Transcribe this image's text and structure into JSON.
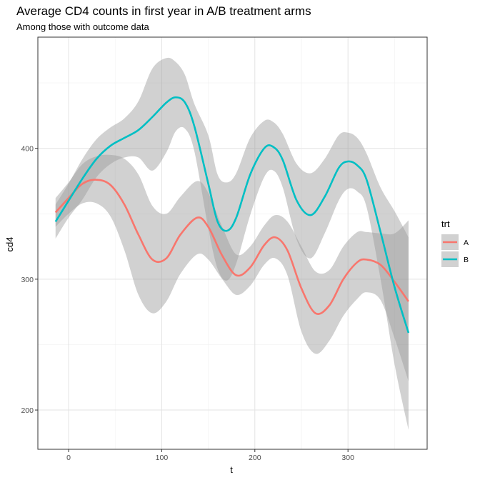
{
  "chart_data": {
    "type": "line",
    "title": "Average CD4 counts in first year in A/B treatment arms",
    "subtitle": "Among those with outcome data",
    "xlabel": "t",
    "ylabel": "cd4",
    "xlim": [
      -33,
      385
    ],
    "ylim": [
      170,
      485
    ],
    "x_ticks": [
      0,
      100,
      200,
      300
    ],
    "y_ticks": [
      200,
      300,
      400
    ],
    "grid": true,
    "legend": {
      "title": "trt",
      "position": "right"
    },
    "series": [
      {
        "name": "A",
        "color": "#F8766D",
        "x": [
          -14,
          0,
          15,
          30,
          45,
          60,
          75,
          90,
          105,
          120,
          138,
          150,
          165,
          180,
          195,
          210,
          222,
          235,
          250,
          265,
          280,
          295,
          310,
          320,
          335,
          350,
          365
        ],
        "y": [
          351,
          362,
          373,
          376,
          372,
          357,
          334,
          315,
          316,
          334,
          347,
          340,
          318,
          303,
          309,
          326,
          332,
          322,
          293,
          274,
          280,
          300,
          313,
          315,
          311,
          298,
          283
        ],
        "ci_lower": [
          340,
          350,
          358,
          358,
          348,
          322,
          288,
          274,
          283,
          304,
          319,
          315,
          300,
          288,
          295,
          311,
          316,
          303,
          260,
          243,
          253,
          272,
          285,
          290,
          284,
          255,
          222
        ],
        "ci_upper": [
          362,
          374,
          388,
          394,
          395,
          392,
          380,
          356,
          350,
          363,
          375,
          366,
          340,
          319,
          325,
          341,
          349,
          344,
          325,
          306,
          307,
          325,
          336,
          336,
          335,
          335,
          345
        ]
      },
      {
        "name": "B",
        "color": "#00BFC4",
        "x": [
          -14,
          0,
          15,
          30,
          45,
          60,
          75,
          90,
          105,
          115,
          125,
          135,
          150,
          160,
          170,
          180,
          195,
          210,
          220,
          230,
          245,
          260,
          275,
          290,
          300,
          310,
          320,
          335,
          350,
          365
        ],
        "y": [
          344,
          360,
          377,
          392,
          402,
          408,
          414,
          424,
          435,
          439,
          435,
          417,
          373,
          344,
          337,
          347,
          380,
          400,
          401,
          391,
          360,
          349,
          363,
          385,
          390,
          387,
          376,
          336,
          294,
          259
        ],
        "ci_lower": [
          331,
          347,
          361,
          378,
          388,
          393,
          393,
          383,
          397,
          413,
          415,
          398,
          339,
          308,
          299,
          312,
          349,
          378,
          383,
          370,
          330,
          316,
          335,
          360,
          369,
          367,
          355,
          300,
          235,
          185
        ],
        "ci_upper": [
          357,
          373,
          392,
          407,
          416,
          423,
          436,
          461,
          469,
          466,
          456,
          434,
          410,
          380,
          374,
          381,
          408,
          421,
          420,
          411,
          388,
          381,
          392,
          410,
          412,
          408,
          396,
          370,
          352,
          332
        ]
      }
    ]
  }
}
